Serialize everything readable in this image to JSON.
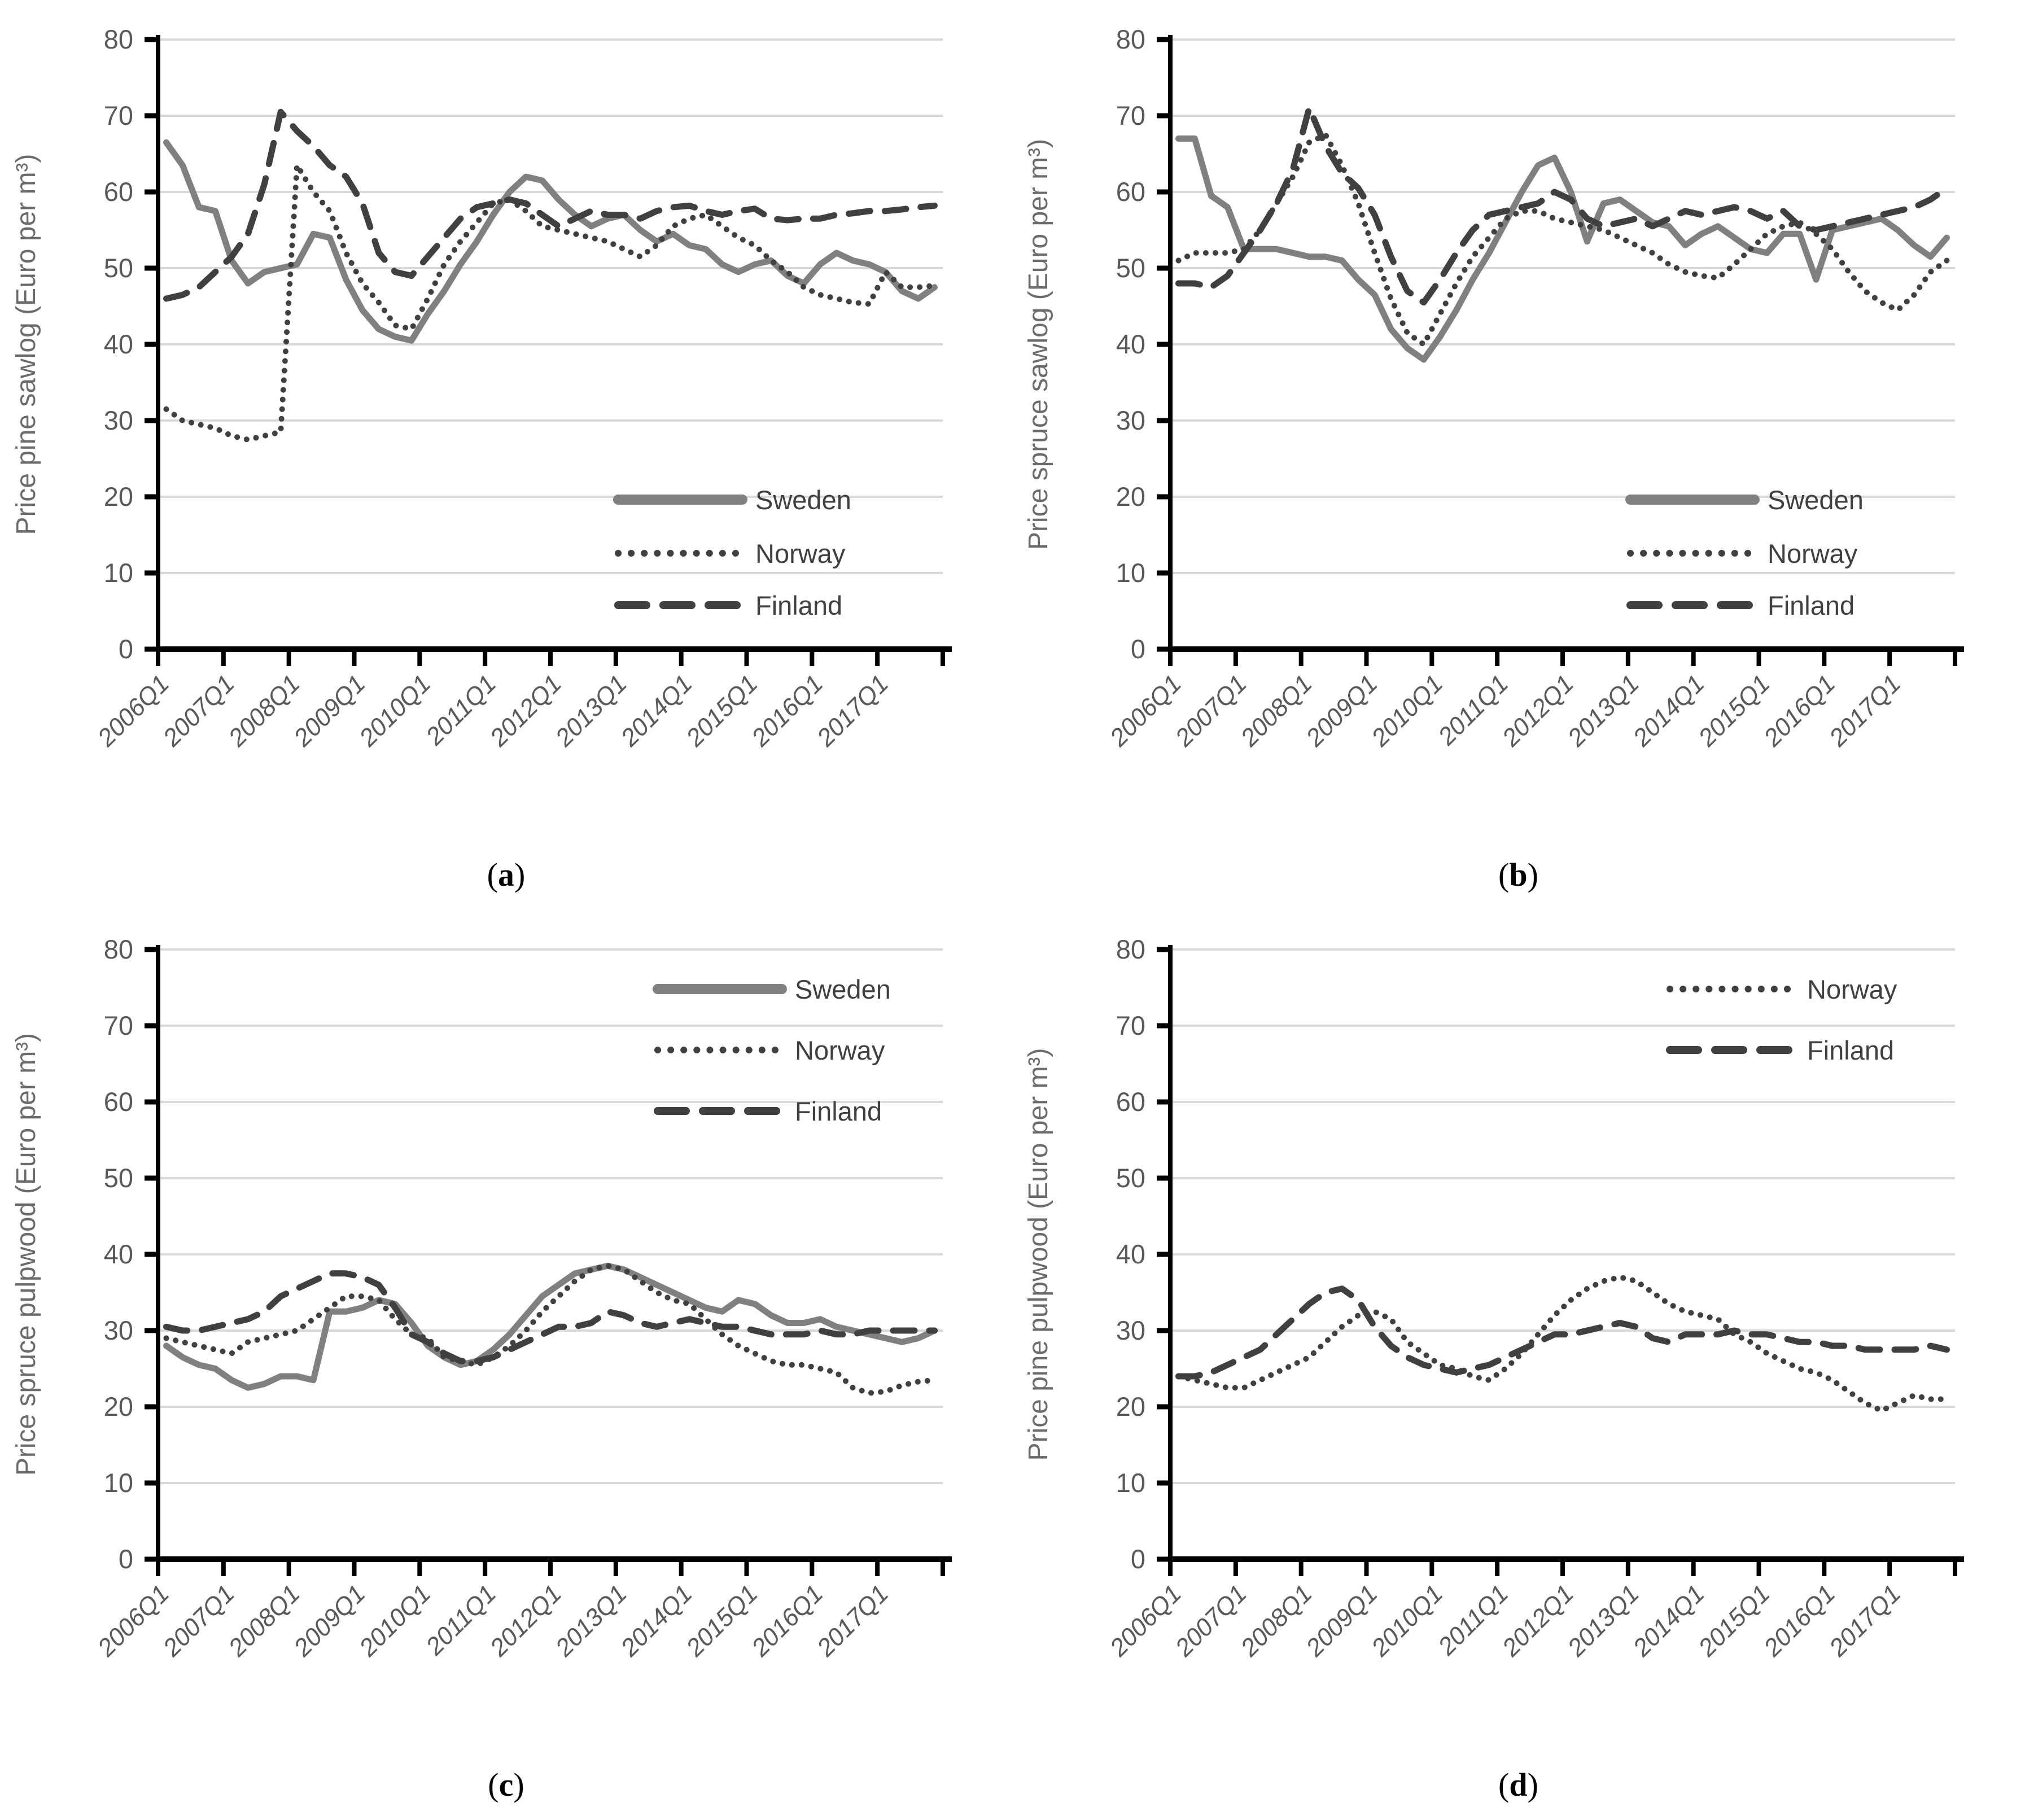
{
  "figure": {
    "background": "#ffffff",
    "x_axis_note": "quarterly series from 2006Q1 to 2017Q4, 48 points per series"
  },
  "colors": {
    "sweden_line": "#808080",
    "norway_line": "#404040",
    "finland_line": "#404040",
    "gridline": "#d9d9d9",
    "axis": "#000000",
    "tick_label": "#595959",
    "axis_title": "#6b6b6b",
    "legend_text": "#404040"
  },
  "chart_data": [
    {
      "id": "a",
      "type": "line",
      "ylabel": "Price pine sawlog (Euro per m³)",
      "ylim": [
        0,
        80
      ],
      "ytick_step": 10,
      "grid": "horizontal",
      "legend_pos": "inside-right-lower",
      "x_start": "2006Q1",
      "x_end": "2017Q4",
      "n_points": 48,
      "x_tick_labels": [
        "2006Q1",
        "2007Q1",
        "2008Q1",
        "2009Q1",
        "2010Q1",
        "2011Q1",
        "2012Q1",
        "2013Q1",
        "2014Q1",
        "2015Q1",
        "2016Q1",
        "2017Q1"
      ],
      "caption": {
        "open": "(",
        "letter": "a",
        "close": ")"
      },
      "series": [
        {
          "name": "Sweden",
          "line_style": "solid",
          "color": "#808080",
          "values": [
            66.5,
            63.5,
            58,
            57.5,
            51,
            48,
            49.5,
            50,
            50.5,
            54.5,
            54,
            48.5,
            44.5,
            42,
            41,
            40.5,
            44,
            47,
            50.5,
            53.5,
            57,
            60,
            62,
            61.5,
            59,
            57,
            55.5,
            56.5,
            57,
            55,
            53.5,
            54.5,
            53,
            52.5,
            50.5,
            49.5,
            50.5,
            51,
            49,
            48,
            50.5,
            52,
            51,
            50.5,
            49.5,
            47,
            46,
            47.5
          ]
        },
        {
          "name": "Norway",
          "line_style": "dotted",
          "color": "#404040",
          "values": [
            31.5,
            30,
            29.5,
            29,
            28,
            27.5,
            28,
            28.5,
            63.5,
            60,
            57.5,
            52,
            48,
            45.5,
            42.5,
            42,
            46,
            50.5,
            53.5,
            56,
            58.5,
            59,
            57.5,
            55.5,
            55,
            54.5,
            54,
            53.5,
            52.5,
            51.5,
            53,
            55.5,
            56.5,
            57,
            55.5,
            54,
            53,
            51,
            49.5,
            47.5,
            46.5,
            46,
            45.5,
            45.3,
            49.5,
            47.5,
            47.5,
            47.7
          ]
        },
        {
          "name": "Finland",
          "line_style": "dashed",
          "color": "#404040",
          "values": [
            46,
            46.5,
            47.5,
            49.5,
            51.5,
            54.5,
            61,
            70.5,
            68,
            66,
            63.5,
            62,
            58.5,
            52,
            49.5,
            49,
            51.5,
            54,
            56.5,
            58,
            58.5,
            59,
            58.5,
            57,
            55.5,
            56.5,
            57.5,
            57,
            57,
            56.5,
            57.5,
            58,
            58.2,
            57.5,
            57,
            57.5,
            57.8,
            56.5,
            56.3,
            56.5,
            56.5,
            57,
            57.2,
            57.5,
            57.5,
            57.7,
            58,
            58.2
          ]
        }
      ]
    },
    {
      "id": "b",
      "type": "line",
      "ylabel": "Price spruce sawlog (Euro per m³)",
      "ylim": [
        0,
        80
      ],
      "ytick_step": 10,
      "grid": "horizontal",
      "legend_pos": "inside-right-lower",
      "x_start": "2006Q1",
      "x_end": "2017Q4",
      "n_points": 48,
      "x_tick_labels": [
        "2006Q1",
        "2007Q1",
        "2008Q1",
        "2009Q1",
        "2010Q1",
        "2011Q1",
        "2012Q1",
        "2013Q1",
        "2014Q1",
        "2015Q1",
        "2016Q1",
        "2017Q1"
      ],
      "caption": {
        "open": "(",
        "letter": "b",
        "close": ")"
      },
      "series": [
        {
          "name": "Sweden",
          "line_style": "solid",
          "color": "#808080",
          "values": [
            67,
            67,
            59.5,
            58,
            52.5,
            52.5,
            52.5,
            52,
            51.5,
            51.5,
            51,
            48.5,
            46.5,
            42,
            39.5,
            38,
            41,
            44.5,
            48.5,
            52,
            56,
            60,
            63.5,
            64.5,
            60,
            53.5,
            58.5,
            59,
            57.5,
            56,
            55.5,
            53,
            54.5,
            55.5,
            54,
            52.5,
            52,
            54.5,
            54.5,
            48.5,
            55,
            55.5,
            56,
            56.5,
            55,
            53,
            51.5,
            54
          ]
        },
        {
          "name": "Norway",
          "line_style": "dotted",
          "color": "#404040",
          "values": [
            51,
            52,
            52,
            52,
            52.5,
            55,
            58.5,
            62,
            66.5,
            67.5,
            63.5,
            58.5,
            52,
            46,
            41.5,
            40,
            44,
            48,
            51.5,
            54,
            56.5,
            57.5,
            57.5,
            56.5,
            56,
            55.5,
            55,
            54,
            53,
            52,
            50.5,
            49.5,
            49,
            48.7,
            50.5,
            52.5,
            54.5,
            55.5,
            56,
            54.5,
            52.5,
            49.5,
            47,
            45.5,
            44.5,
            46.5,
            49.5,
            51
          ]
        },
        {
          "name": "Finland",
          "line_style": "dashed",
          "color": "#404040",
          "values": [
            48,
            48,
            47.5,
            49,
            52,
            55,
            58.5,
            63,
            71,
            66,
            62.5,
            60.5,
            57,
            51.5,
            47,
            45.5,
            48.5,
            52,
            55,
            57,
            57.5,
            58,
            58.5,
            60,
            59,
            56.5,
            55.5,
            56,
            56.5,
            55.5,
            56.5,
            57.5,
            57,
            57.5,
            58,
            57.5,
            56.5,
            57.5,
            55.5,
            55,
            55.5,
            56,
            56.5,
            57,
            57.5,
            58,
            59,
            60.5
          ]
        }
      ]
    },
    {
      "id": "c",
      "type": "line",
      "ylabel": "Price spruce pulpwood (Euro per m³)",
      "ylim": [
        0,
        80
      ],
      "ytick_step": 10,
      "grid": "horizontal",
      "legend_pos": "inside-right-upper",
      "x_start": "2006Q1",
      "x_end": "2017Q4",
      "n_points": 48,
      "x_tick_labels": [
        "2006Q1",
        "2007Q1",
        "2008Q1",
        "2009Q1",
        "2010Q1",
        "2011Q1",
        "2012Q1",
        "2013Q1",
        "2014Q1",
        "2015Q1",
        "2016Q1",
        "2017Q1"
      ],
      "caption": {
        "open": "(",
        "letter": "c",
        "close": ")"
      },
      "series": [
        {
          "name": "Sweden",
          "line_style": "solid",
          "color": "#808080",
          "values": [
            28,
            26.5,
            25.5,
            25,
            23.5,
            22.5,
            23,
            24,
            24,
            23.5,
            32.5,
            32.5,
            33,
            34,
            33.5,
            31,
            28,
            26.5,
            25.5,
            26,
            27.5,
            29.5,
            32,
            34.5,
            36,
            37.5,
            38,
            38.5,
            38,
            37,
            36,
            35,
            34,
            33,
            32.5,
            34,
            33.5,
            32,
            31,
            31,
            31.5,
            30.5,
            30,
            29.5,
            29,
            28.5,
            29,
            30
          ]
        },
        {
          "name": "Norway",
          "line_style": "dotted",
          "color": "#404040",
          "values": [
            29,
            28.5,
            28,
            27.5,
            27,
            28.5,
            29,
            29.5,
            30,
            31.5,
            33,
            34.5,
            34.5,
            34,
            31.5,
            29.5,
            29,
            26.5,
            26,
            25.5,
            26.5,
            28,
            30,
            32.5,
            34.5,
            36.5,
            38,
            38.5,
            38,
            36.5,
            35,
            34,
            33.5,
            31.5,
            29.5,
            28,
            27,
            26,
            25.5,
            25.5,
            25,
            24.5,
            22.5,
            21.8,
            22,
            22.8,
            23.3,
            23.5
          ]
        },
        {
          "name": "Finland",
          "line_style": "dashed",
          "color": "#404040",
          "values": [
            30.5,
            30,
            30,
            30.5,
            31,
            31.5,
            32.5,
            34.5,
            35.5,
            36.5,
            37.5,
            37.5,
            37,
            36,
            33,
            29.5,
            28.5,
            27,
            26,
            26,
            26.5,
            27.5,
            28.5,
            29.5,
            30.5,
            30.5,
            31,
            32.5,
            32,
            31,
            30.5,
            31,
            31.5,
            31,
            30.5,
            30.5,
            30,
            29.5,
            29.5,
            29.5,
            30,
            29.5,
            29.5,
            30,
            30,
            30,
            30,
            30
          ]
        }
      ]
    },
    {
      "id": "d",
      "type": "line",
      "ylabel": "Price pine pulpwood (Euro per m³)",
      "ylim": [
        0,
        80
      ],
      "ytick_step": 10,
      "grid": "horizontal",
      "legend_pos": "inside-right-upper",
      "x_start": "2006Q1",
      "x_end": "2017Q4",
      "n_points": 48,
      "x_tick_labels": [
        "2006Q1",
        "2007Q1",
        "2008Q1",
        "2009Q1",
        "2010Q1",
        "2011Q1",
        "2012Q1",
        "2013Q1",
        "2014Q1",
        "2015Q1",
        "2016Q1",
        "2017Q1"
      ],
      "caption": {
        "open": "(",
        "letter": "d",
        "close": ")"
      },
      "series": [
        {
          "name": "Norway",
          "line_style": "dotted",
          "color": "#404040",
          "values": [
            24,
            23.5,
            23,
            22.5,
            22.5,
            23.5,
            24.5,
            25.5,
            26.5,
            28.5,
            30.5,
            32,
            32.5,
            31.5,
            28.5,
            27,
            25.5,
            25,
            24,
            23.5,
            25,
            27,
            29.5,
            32,
            34,
            35.5,
            36.5,
            37,
            36.5,
            35,
            33.5,
            32.5,
            32,
            31.5,
            29.5,
            28.5,
            27,
            26,
            25,
            24.5,
            23.5,
            22,
            20.5,
            19.5,
            20.5,
            21.5,
            21,
            21
          ]
        },
        {
          "name": "Finland",
          "line_style": "dashed",
          "color": "#404040",
          "values": [
            24,
            24,
            24.5,
            25.5,
            26.5,
            27.5,
            29.5,
            31.5,
            33.5,
            35,
            35.5,
            34,
            30.5,
            28,
            26.5,
            25.5,
            25,
            24.5,
            25,
            25.5,
            26.5,
            27.5,
            28.5,
            29.5,
            29.5,
            30,
            30.5,
            31,
            30.5,
            29,
            28.5,
            29.5,
            29.5,
            29.5,
            30,
            29.5,
            29.5,
            29,
            28.5,
            28.5,
            28,
            28,
            27.5,
            27.5,
            27.5,
            27.5,
            28,
            27.5
          ]
        }
      ]
    }
  ]
}
